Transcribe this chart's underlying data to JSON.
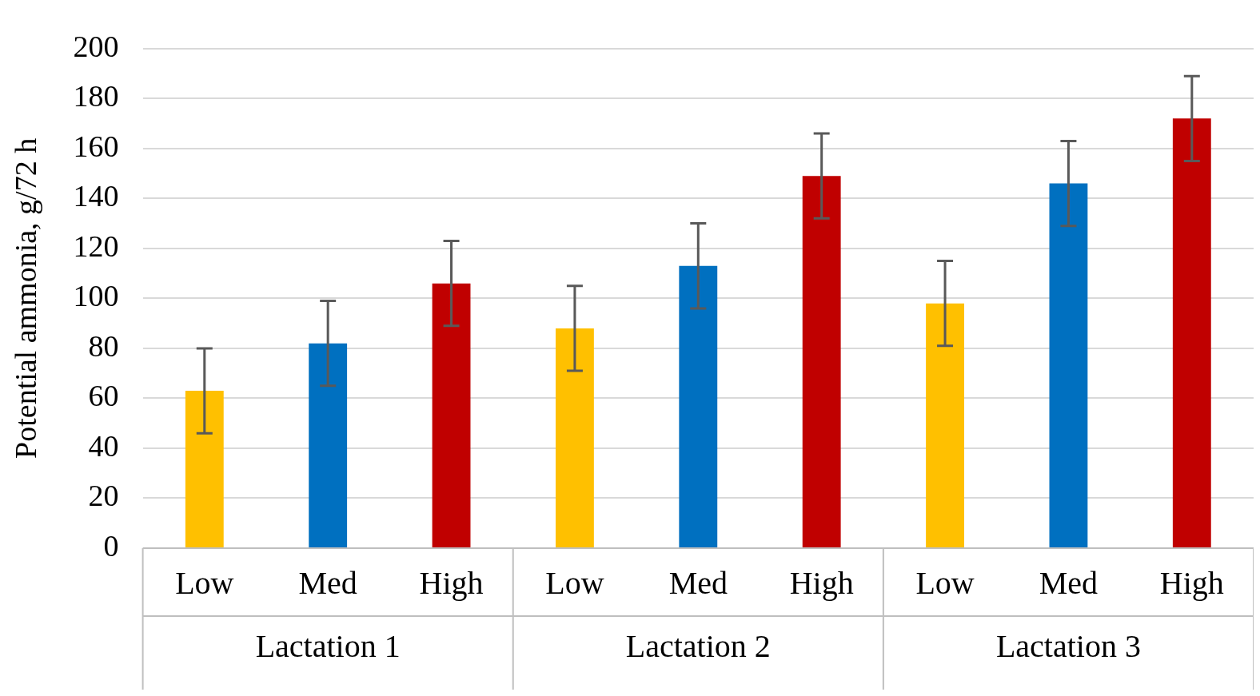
{
  "chart_data": {
    "type": "bar",
    "ylabel": "Potential ammonia, g/72 h",
    "categories": [
      "Low",
      "Med",
      "High",
      "Low",
      "Med",
      "High",
      "Low",
      "Med",
      "High"
    ],
    "values": [
      63,
      82,
      106,
      88,
      113,
      149,
      98,
      146,
      172
    ],
    "colors": [
      "#ffc000",
      "#0070c0",
      "#c00000",
      "#ffc000",
      "#0070c0",
      "#c00000",
      "#ffc000",
      "#0070c0",
      "#c00000"
    ],
    "errors": [
      17,
      17,
      17,
      17,
      17,
      17,
      17,
      17,
      17
    ],
    "annotations": [
      "Lactation 1",
      "Lactation 2",
      "Lactation 3"
    ],
    "ylim": [
      0,
      200
    ],
    "yticks": [
      0,
      20,
      40,
      60,
      80,
      100,
      120,
      140,
      160,
      180,
      200
    ],
    "grid": "y",
    "legend": false
  }
}
